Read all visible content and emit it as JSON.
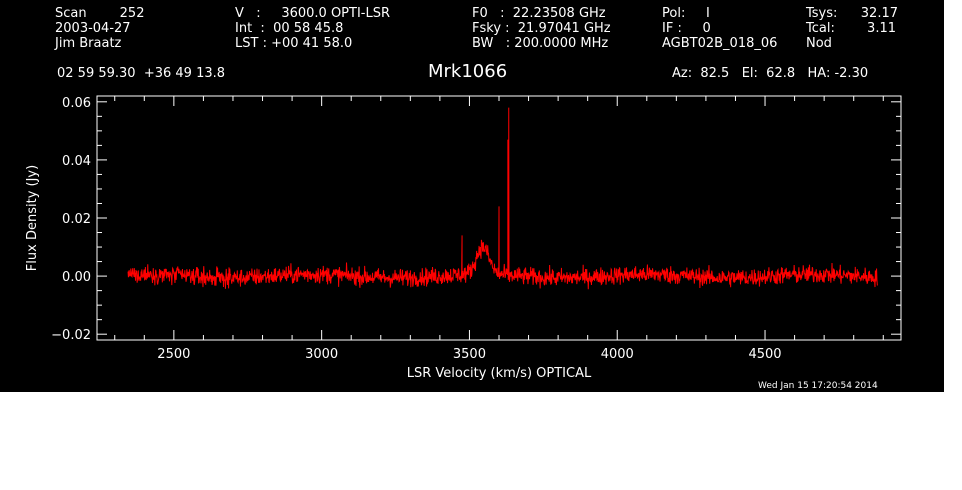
{
  "header": {
    "col1": [
      "Scan        252",
      "2003-04-27",
      "Jim Braatz"
    ],
    "col2": [
      "V   :     3600.0 OPTI-LSR",
      "Int  :  00 58 45.8",
      "LST : +00 41 58.0"
    ],
    "col3": [
      "F0   :  22.23508 GHz",
      "Fsky :  21.97041 GHz",
      "BW   : 200.0000 MHz"
    ],
    "col4": [
      "Pol:     I",
      "IF :     0",
      "AGBT02B_018_06"
    ],
    "col5": [
      "Tsys:",
      "Tcal:",
      "Nod"
    ],
    "col5v": [
      "32.17",
      "3.11",
      ""
    ],
    "coords": "02 59 59.30  +36 49 13.8",
    "object": "Mrk1066",
    "azel": "Az:  82.5   El:  62.8   HA: -2.30",
    "timestamp": "Wed Jan 15 17:20:54 2014"
  },
  "colors": {
    "background": "#000000",
    "axes": "#ffffff",
    "trace": "#ff0000"
  },
  "chart_data": {
    "type": "line",
    "xlabel": "LSR Velocity (km/s) OPTICAL",
    "ylabel": "Flux Density (Jy)",
    "xlim": [
      2240,
      4960
    ],
    "ylim": [
      -0.022,
      0.062
    ],
    "xticks": [
      2500,
      3000,
      3500,
      4000,
      4500
    ],
    "xtick_labels": [
      "2500",
      "3000",
      "3500",
      "4000",
      "4500"
    ],
    "yticks": [
      -0.02,
      0.0,
      0.02,
      0.04,
      0.06
    ],
    "ytick_labels": [
      "−0.02",
      "0.00",
      "0.02",
      "0.04",
      "0.06"
    ],
    "grid": false,
    "series": [
      {
        "name": "",
        "x_range": [
          2345,
          4880
        ],
        "noise_rms_jy": 0.0018,
        "features": [
          {
            "kind": "broad",
            "center": 3545,
            "height": 0.0095,
            "width": 30
          },
          {
            "kind": "spike",
            "x": 3475,
            "peak": 0.014
          },
          {
            "kind": "spike",
            "x": 3600,
            "peak": 0.024
          },
          {
            "kind": "spike",
            "x": 3630,
            "peak": 0.047
          },
          {
            "kind": "spike",
            "x": 3633,
            "peak": 0.058
          }
        ]
      }
    ]
  }
}
